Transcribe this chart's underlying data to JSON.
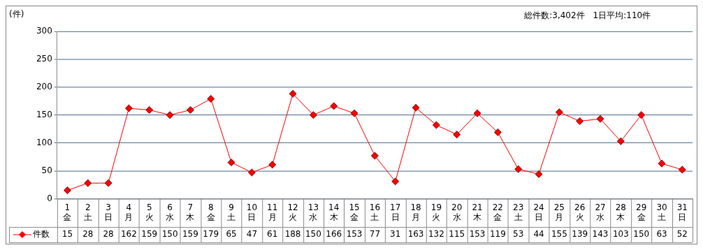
{
  "chart_data": {
    "type": "line",
    "ylabel": "(件)",
    "annotations": [
      "総件数:3,402件　1日平均:110件"
    ],
    "categories": [
      "1\n金",
      "2\n土",
      "3\n日",
      "4\n月",
      "5\n火",
      "6\n水",
      "7\n木",
      "8\n金",
      "9\n土",
      "10\n日",
      "11\n月",
      "12\n火",
      "13\n水",
      "14\n木",
      "15\n金",
      "16\n土",
      "17\n日",
      "18\n月",
      "19\n火",
      "20\n水",
      "21\n木",
      "22\n金",
      "23\n土",
      "24\n日",
      "25\n月",
      "26\n火",
      "27\n水",
      "28\n木",
      "29\n金",
      "30\n土",
      "31\n日"
    ],
    "series": [
      {
        "name": "件数",
        "color": "#ff0000",
        "values": [
          15,
          28,
          28,
          162,
          159,
          150,
          159,
          179,
          65,
          47,
          61,
          188,
          150,
          166,
          153,
          77,
          31,
          163,
          132,
          115,
          153,
          119,
          53,
          44,
          155,
          139,
          143,
          103,
          150,
          63,
          52
        ]
      }
    ],
    "ylim": [
      0,
      300
    ],
    "yticks": [
      0,
      50,
      100,
      150,
      200,
      250,
      300
    ],
    "grid": "y",
    "marker": "diamond",
    "line_style": "solid",
    "data_labels": true,
    "legend": "bottom left"
  }
}
